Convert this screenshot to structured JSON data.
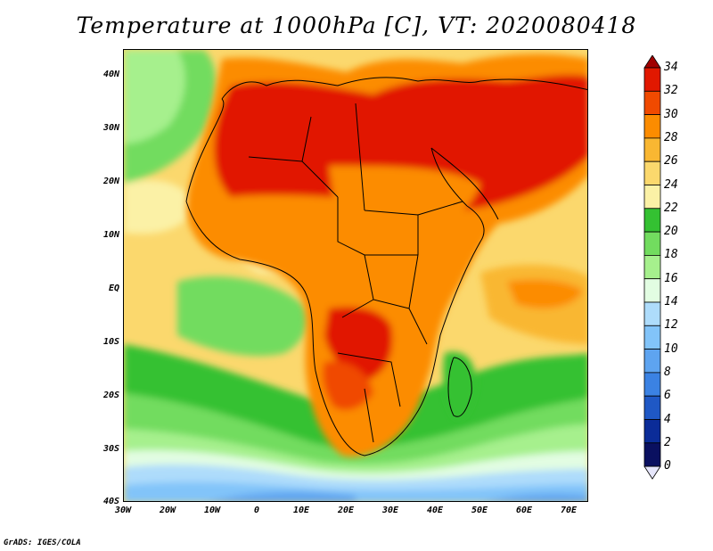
{
  "title": "Temperature at 1000hPa [C], VT: 2020080418",
  "footer": "GrADS: IGES/COLA",
  "lat_labels": [
    "40N",
    "30N",
    "20N",
    "10N",
    "EQ",
    "10S",
    "20S",
    "30S",
    "40S"
  ],
  "lon_labels": [
    "30W",
    "20W",
    "10W",
    "0",
    "10E",
    "20E",
    "30E",
    "40E",
    "50E",
    "60E",
    "70E"
  ],
  "colorbar": {
    "levels": [
      "34",
      "32",
      "30",
      "28",
      "26",
      "24",
      "22",
      "20",
      "18",
      "16",
      "14",
      "12",
      "10",
      "8",
      "6",
      "4",
      "2",
      "0"
    ],
    "colors": [
      "#a00000",
      "#e11800",
      "#f04a00",
      "#fc8c00",
      "#f9b732",
      "#fbd86d",
      "#fbf1a6",
      "#34c132",
      "#72dc5f",
      "#a6f08d",
      "#e2fde2",
      "#aedcfb",
      "#82c4f9",
      "#5ea4f0",
      "#3b82e3",
      "#1f58c5",
      "#0b2c98",
      "#0a1060",
      "#e6e6fb"
    ]
  }
}
